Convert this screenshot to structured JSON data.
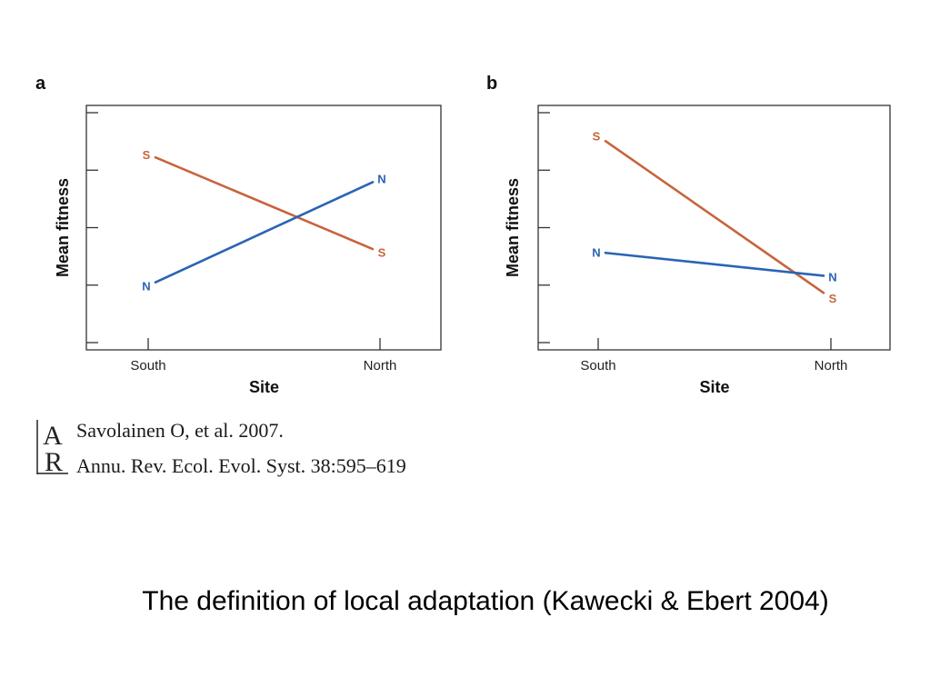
{
  "chart_data": [
    {
      "panel": "a",
      "type": "line",
      "xlabel": "Site",
      "ylabel": "Mean fitness",
      "categories": [
        "South",
        "North"
      ],
      "ylim": [
        0,
        4
      ],
      "grid": false,
      "legend": "inline-labels",
      "series": [
        {
          "name": "S",
          "values": [
            3.2,
            1.6
          ],
          "color": "#c8643c"
        },
        {
          "name": "N",
          "values": [
            1.05,
            2.8
          ],
          "color": "#2a64b4"
        }
      ]
    },
    {
      "panel": "b",
      "type": "line",
      "xlabel": "Site",
      "ylabel": "Mean fitness",
      "categories": [
        "South",
        "North"
      ],
      "ylim": [
        0,
        4
      ],
      "grid": false,
      "legend": "inline-labels",
      "series": [
        {
          "name": "S",
          "values": [
            3.5,
            0.85
          ],
          "color": "#c8643c"
        },
        {
          "name": "N",
          "values": [
            1.6,
            1.2
          ],
          "color": "#2a64b4"
        }
      ]
    }
  ],
  "citation": {
    "logo_text": "AR",
    "line1": "Savolainen O, et al. 2007.",
    "line2": "Annu. Rev. Ecol. Evol. Syst. 38:595–619"
  },
  "caption": "The definition of local adaptation (Kawecki & Ebert 2004)"
}
